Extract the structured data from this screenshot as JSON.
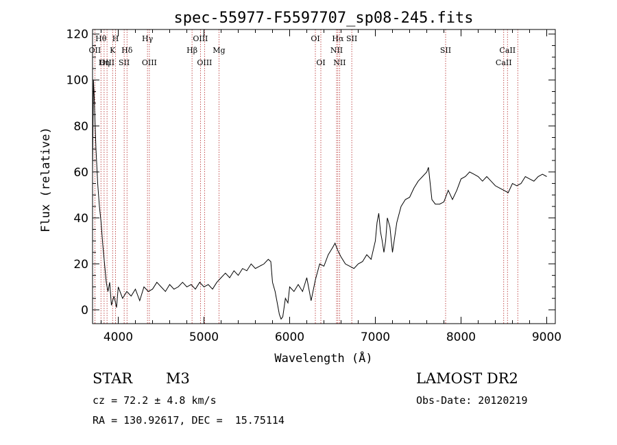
{
  "chart_data": {
    "type": "line",
    "title": "spec-55977-F5597707_sp08-245.fits",
    "xlabel": "Wavelength (Å)",
    "ylabel": "Flux (relative)",
    "xlim": [
      3700,
      9100
    ],
    "ylim": [
      -6,
      122
    ],
    "xticks": [
      4000,
      5000,
      6000,
      7000,
      8000,
      9000
    ],
    "yticks": [
      0,
      20,
      40,
      60,
      80,
      100,
      120
    ],
    "grid": false,
    "series": [
      {
        "color": "#000000",
        "x": [
          3700,
          3710,
          3720,
          3730,
          3740,
          3760,
          3780,
          3800,
          3820,
          3840,
          3860,
          3880,
          3900,
          3920,
          3950,
          3980,
          4000,
          4050,
          4100,
          4150,
          4200,
          4250,
          4300,
          4350,
          4400,
          4450,
          4500,
          4550,
          4600,
          4650,
          4700,
          4750,
          4800,
          4850,
          4900,
          4950,
          5000,
          5050,
          5100,
          5150,
          5200,
          5250,
          5300,
          5350,
          5400,
          5450,
          5500,
          5550,
          5600,
          5650,
          5700,
          5750,
          5780,
          5800,
          5830,
          5850,
          5880,
          5900,
          5920,
          5950,
          5980,
          6000,
          6050,
          6100,
          6150,
          6200,
          6250,
          6300,
          6350,
          6400,
          6450,
          6500,
          6530,
          6560,
          6600,
          6650,
          6700,
          6750,
          6800,
          6850,
          6900,
          6950,
          7000,
          7020,
          7040,
          7060,
          7080,
          7100,
          7120,
          7140,
          7170,
          7200,
          7250,
          7300,
          7350,
          7400,
          7450,
          7500,
          7550,
          7600,
          7620,
          7640,
          7660,
          7700,
          7750,
          7800,
          7850,
          7900,
          7950,
          8000,
          8050,
          8100,
          8150,
          8200,
          8250,
          8300,
          8350,
          8400,
          8450,
          8500,
          8550,
          8600,
          8650,
          8700,
          8750,
          8800,
          8850,
          8900,
          8950,
          9000
        ],
        "y": [
          60,
          100,
          92,
          80,
          70,
          55,
          45,
          38,
          28,
          20,
          12,
          8,
          12,
          2,
          6,
          1,
          10,
          5,
          8,
          6,
          9,
          4,
          10,
          8,
          9,
          12,
          10,
          8,
          11,
          9,
          10,
          12,
          10,
          11,
          9,
          12,
          10,
          11,
          9,
          12,
          14,
          16,
          14,
          17,
          15,
          18,
          17,
          20,
          18,
          19,
          20,
          22,
          21,
          12,
          8,
          4,
          -2,
          -4,
          -3,
          5,
          3,
          10,
          8,
          11,
          8,
          14,
          4,
          13,
          20,
          19,
          24,
          27,
          29,
          26,
          23,
          20,
          19,
          18,
          20,
          21,
          24,
          22,
          30,
          38,
          42,
          34,
          30,
          25,
          30,
          40,
          36,
          25,
          38,
          45,
          48,
          49,
          53,
          56,
          58,
          60,
          62,
          55,
          48,
          46,
          46,
          47,
          52,
          48,
          52,
          57,
          58,
          60,
          59,
          58,
          56,
          58,
          56,
          54,
          53,
          52,
          51,
          55,
          54,
          55,
          58,
          57,
          56,
          58,
          59,
          58
        ]
      }
    ],
    "lines": [
      {
        "label": "Hθ",
        "x": 3798,
        "row": 0
      },
      {
        "label": "OII",
        "x": 3727,
        "row": 1
      },
      {
        "label": "OIII",
        "x": 3869,
        "row": 2
      },
      {
        "label": "Hη",
        "x": 3835,
        "row": 2
      },
      {
        "label": "H",
        "x": 3968,
        "row": 0
      },
      {
        "label": "K",
        "x": 3934,
        "row": 1
      },
      {
        "label": "Hδ",
        "x": 4102,
        "row": 1
      },
      {
        "label": "SII",
        "x": 4069,
        "row": 2
      },
      {
        "label": "Hγ",
        "x": 4341,
        "row": 0
      },
      {
        "label": "OIII",
        "x": 4363,
        "row": 2
      },
      {
        "label": "OIII",
        "x": 4959,
        "row": 0
      },
      {
        "label": "Hβ",
        "x": 4861,
        "row": 1
      },
      {
        "label": "OIII",
        "x": 5007,
        "row": 2
      },
      {
        "label": "Mg",
        "x": 5175,
        "row": 1
      },
      {
        "label": "OI",
        "x": 6300,
        "row": 0
      },
      {
        "label": "OI",
        "x": 6364,
        "row": 2
      },
      {
        "label": "Hα",
        "x": 6563,
        "row": 0
      },
      {
        "label": "NII",
        "x": 6548,
        "row": 1
      },
      {
        "label": "NII",
        "x": 6583,
        "row": 2
      },
      {
        "label": "SII",
        "x": 6725,
        "row": 0
      },
      {
        "label": "SII",
        "x": 7820,
        "row": 1
      },
      {
        "label": "CaII",
        "x": 8542,
        "row": 1
      },
      {
        "label": "CaII",
        "x": 8498,
        "row": 2
      },
      {
        "label": "",
        "x": 8662,
        "row": 3
      }
    ]
  },
  "info": {
    "class": "STAR",
    "subclass": "M3",
    "survey": "LAMOST DR2",
    "cz": "cz = 72.2 ± 4.8 km/s",
    "obs_date": "Obs-Date: 20120219",
    "coords": "RA = 130.92617, DEC =  15.75114"
  }
}
